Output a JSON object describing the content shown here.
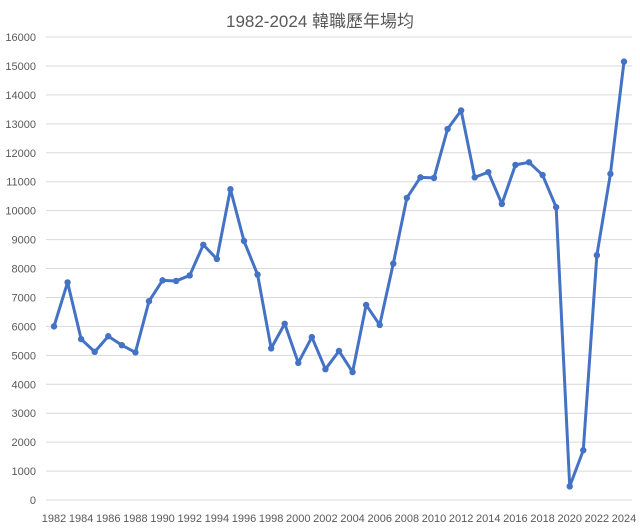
{
  "chart_data": {
    "type": "line",
    "title": "1982-2024 韓職歷年場均",
    "xlabel": "",
    "ylabel": "",
    "ylim": [
      0,
      16000
    ],
    "ytick_step": 1000,
    "grid": true,
    "legend": "none",
    "color": "#4472C4",
    "x_tick_labels": [
      "1982",
      "1984",
      "1986",
      "1988",
      "1990",
      "1992",
      "1994",
      "1996",
      "1998",
      "2000",
      "2002",
      "2004",
      "2006",
      "2008",
      "2010",
      "2012",
      "2014",
      "2016",
      "2018",
      "2020",
      "2022",
      "2024"
    ],
    "x": [
      1982,
      1983,
      1984,
      1985,
      1986,
      1987,
      1988,
      1989,
      1990,
      1991,
      1992,
      1993,
      1994,
      1995,
      1996,
      1997,
      1998,
      1999,
      2000,
      2001,
      2002,
      2003,
      2004,
      2005,
      2006,
      2007,
      2008,
      2009,
      2010,
      2011,
      2012,
      2013,
      2014,
      2015,
      2016,
      2017,
      2018,
      2019,
      2020,
      2021,
      2022,
      2023,
      2024
    ],
    "series": [
      {
        "values": [
          6000,
          7520,
          5560,
          5120,
          5660,
          5350,
          5100,
          6870,
          7590,
          7570,
          7760,
          8820,
          8330,
          10740,
          8950,
          7790,
          5240,
          6090,
          4740,
          5630,
          4520,
          5150,
          4420,
          6740,
          6050,
          8170,
          10440,
          11150,
          11130,
          12820,
          13460,
          11150,
          11330,
          10230,
          11580,
          11670,
          11230,
          10120,
          470,
          1720,
          8460,
          11270,
          15150
        ]
      }
    ]
  }
}
